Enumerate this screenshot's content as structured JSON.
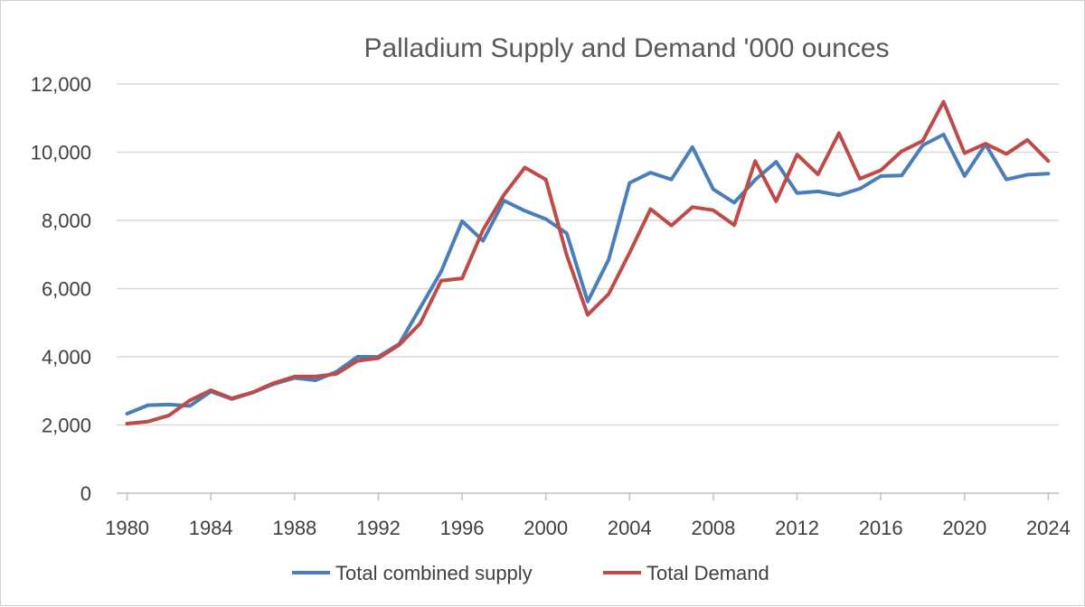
{
  "chart_data": {
    "type": "line",
    "title": "Palladium Supply and Demand '000 ounces",
    "xlabel": "",
    "ylabel": "",
    "ylim": [
      0,
      12000
    ],
    "yticks": [
      0,
      2000,
      4000,
      6000,
      8000,
      10000,
      12000
    ],
    "ytick_labels": [
      "0",
      "2,000",
      "4,000",
      "6,000",
      "8,000",
      "10,000",
      "12,000"
    ],
    "xtick_labels": [
      "1980",
      "1984",
      "1988",
      "1992",
      "1996",
      "2000",
      "2004",
      "2008",
      "2012",
      "2016",
      "2020",
      "2024"
    ],
    "x": [
      1980,
      1981,
      1982,
      1983,
      1984,
      1985,
      1986,
      1987,
      1988,
      1989,
      1990,
      1991,
      1992,
      1993,
      1994,
      1995,
      1996,
      1997,
      1998,
      1999,
      2000,
      2001,
      2002,
      2003,
      2004,
      2005,
      2006,
      2007,
      2008,
      2009,
      2010,
      2011,
      2012,
      2013,
      2014,
      2015,
      2016,
      2017,
      2018,
      2019,
      2020,
      2021,
      2022,
      2023,
      2024
    ],
    "grid": true,
    "legend_position": "bottom",
    "series": [
      {
        "name": "Total combined supply",
        "color": "#4a7ebb",
        "values": [
          2330,
          2580,
          2600,
          2560,
          2980,
          2760,
          2950,
          3200,
          3380,
          3310,
          3560,
          4000,
          4000,
          4380,
          5440,
          6500,
          7980,
          7400,
          8580,
          8280,
          8040,
          7620,
          5620,
          6850,
          9100,
          9400,
          9200,
          10150,
          8910,
          8520,
          9190,
          9720,
          8800,
          8850,
          8740,
          8930,
          9300,
          9320,
          10200,
          10520,
          9300,
          10230,
          9200,
          9340,
          9370
        ]
      },
      {
        "name": "Total Demand",
        "color": "#be4b48",
        "values": [
          2040,
          2100,
          2280,
          2720,
          3020,
          2780,
          2960,
          3230,
          3420,
          3420,
          3500,
          3880,
          3960,
          4350,
          4980,
          6230,
          6300,
          7720,
          8750,
          9550,
          9200,
          6980,
          5230,
          5840,
          7050,
          8330,
          7850,
          8390,
          8300,
          7860,
          9740,
          8560,
          9930,
          9350,
          10560,
          9220,
          9470,
          10030,
          10330,
          11480,
          9970,
          10250,
          9950,
          10360,
          9740
        ]
      }
    ]
  }
}
